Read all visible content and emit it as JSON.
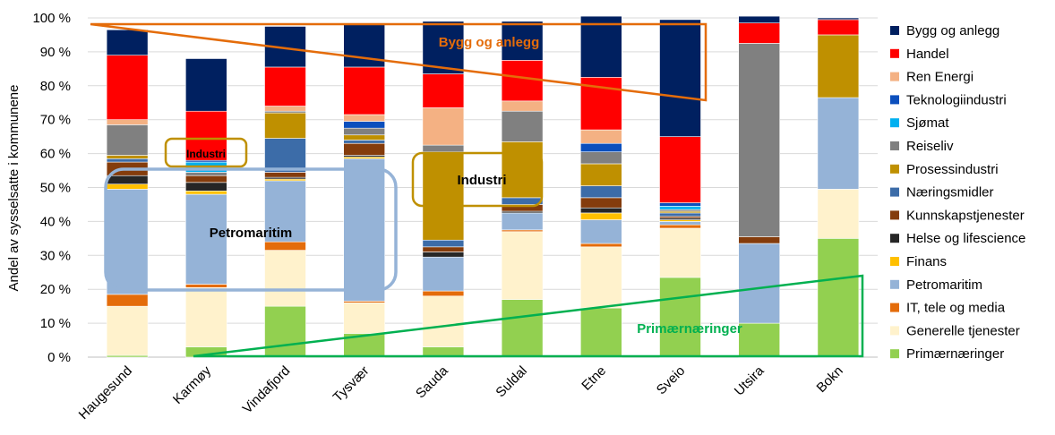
{
  "chart_data": {
    "type": "bar",
    "stacked": true,
    "ylabel": "Andel av sysselsatte i kommunene",
    "ylim": [
      0,
      100
    ],
    "y_ticks": [
      "0 %",
      "10 %",
      "20 %",
      "30 %",
      "40 %",
      "50 %",
      "60 %",
      "70 %",
      "80 %",
      "90 %",
      "100 %"
    ],
    "categories": [
      "Haugesund",
      "Karmøy",
      "Vindafjord",
      "Tysvær",
      "Sauda",
      "Suldal",
      "Etne",
      "Sveio",
      "Utsira",
      "Bokn"
    ],
    "legend_position": "right",
    "series": [
      {
        "name": "Primærnæringer",
        "color": "#92D050",
        "values": [
          0.5,
          3,
          15,
          7,
          3,
          17,
          14.5,
          23.5,
          10,
          35
        ]
      },
      {
        "name": "Generelle tjenester",
        "color": "#FFF2CC",
        "values": [
          14.5,
          17.5,
          16.5,
          9,
          15,
          20,
          18,
          14.5,
          0,
          14.5
        ]
      },
      {
        "name": "IT, tele og media",
        "color": "#E46C0A",
        "values": [
          3.5,
          1,
          2.5,
          0.5,
          1.5,
          0.5,
          1,
          1,
          0,
          0
        ]
      },
      {
        "name": "Petromaritim",
        "color": "#95B3D7",
        "values": [
          31,
          26.5,
          18,
          42,
          10,
          5,
          7,
          1,
          23.5,
          27
        ]
      },
      {
        "name": "Finans",
        "color": "#FFC000",
        "values": [
          1.5,
          1,
          0.5,
          0.5,
          0,
          0,
          2,
          0.5,
          0,
          0
        ]
      },
      {
        "name": "Helse og lifescience",
        "color": "#262626",
        "values": [
          2.5,
          2.5,
          0.5,
          0.5,
          1.5,
          0.5,
          1.5,
          0.5,
          0,
          0
        ]
      },
      {
        "name": "Kunnskapstjenester",
        "color": "#843C0C",
        "values": [
          4,
          2,
          1.5,
          3.5,
          1.5,
          2,
          3,
          0.5,
          2,
          0
        ]
      },
      {
        "name": "Næringsmidler",
        "color": "#3C6CA8",
        "values": [
          1,
          0,
          10,
          1,
          2,
          2,
          3.5,
          1,
          0,
          0
        ]
      },
      {
        "name": "Prosessindustri",
        "color": "#BF9000",
        "values": [
          1,
          0,
          7.5,
          1.5,
          26,
          16.5,
          6.5,
          0.5,
          0,
          18.5
        ]
      },
      {
        "name": "Reiseliv",
        "color": "#808080",
        "values": [
          9,
          1,
          0.5,
          2,
          2,
          9,
          3.5,
          0.5,
          57,
          0
        ]
      },
      {
        "name": "Sjømat",
        "color": "#00B0F0",
        "values": [
          0,
          3,
          0,
          0,
          0,
          0,
          0,
          1,
          0,
          0
        ]
      },
      {
        "name": "Teknologiindustri",
        "color": "#0B4FBD",
        "values": [
          0,
          0.5,
          0,
          2,
          0,
          0,
          2.5,
          1,
          0,
          0
        ]
      },
      {
        "name": "Ren Energi",
        "color": "#F4B183",
        "values": [
          1.5,
          0,
          1.5,
          2,
          11,
          3,
          4,
          0,
          0,
          0
        ]
      },
      {
        "name": "Handel",
        "color": "#FF0000",
        "values": [
          19,
          14.5,
          11.5,
          14,
          10,
          12,
          15.5,
          19.5,
          6,
          4.5
        ]
      },
      {
        "name": "Bygg og anlegg",
        "color": "#002060",
        "values": [
          7.5,
          15.5,
          12,
          13,
          15.5,
          11.5,
          18,
          34.5,
          2,
          0.5
        ]
      }
    ],
    "annotations": [
      {
        "text": "Bygg og anlegg",
        "color": "#E46C0A"
      },
      {
        "text": "Industri",
        "color": "#BF9000"
      },
      {
        "text": "Industri",
        "color": "#BF9000"
      },
      {
        "text": "Petromaritim",
        "color": "#95B3D7"
      },
      {
        "text": "Primærnæringer",
        "color": "#00B050"
      }
    ]
  }
}
